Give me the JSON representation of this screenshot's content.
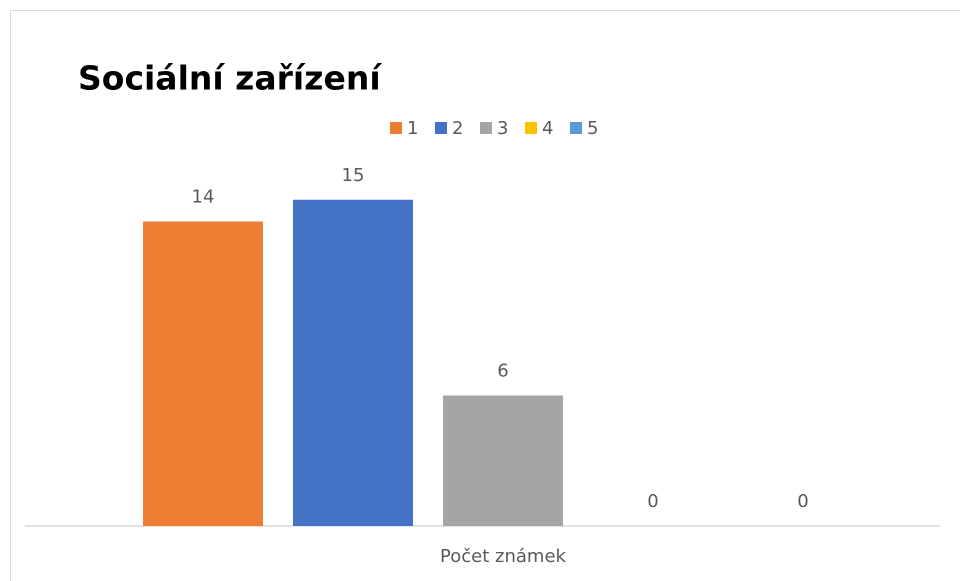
{
  "chart_data": {
    "type": "bar",
    "title": "Sociální zařízení",
    "categories": [
      "Počet známek"
    ],
    "series": [
      {
        "name": "1",
        "color": "#ED7D31",
        "values": [
          14
        ]
      },
      {
        "name": "2",
        "color": "#4472C4",
        "values": [
          15
        ]
      },
      {
        "name": "3",
        "color": "#A5A5A5",
        "values": [
          6
        ]
      },
      {
        "name": "4",
        "color": "#FFC000",
        "values": [
          0
        ]
      },
      {
        "name": "5",
        "color": "#5B9BD5",
        "values": [
          0
        ]
      }
    ],
    "ylim": [
      0,
      16
    ],
    "grid": false,
    "legend": "top"
  }
}
